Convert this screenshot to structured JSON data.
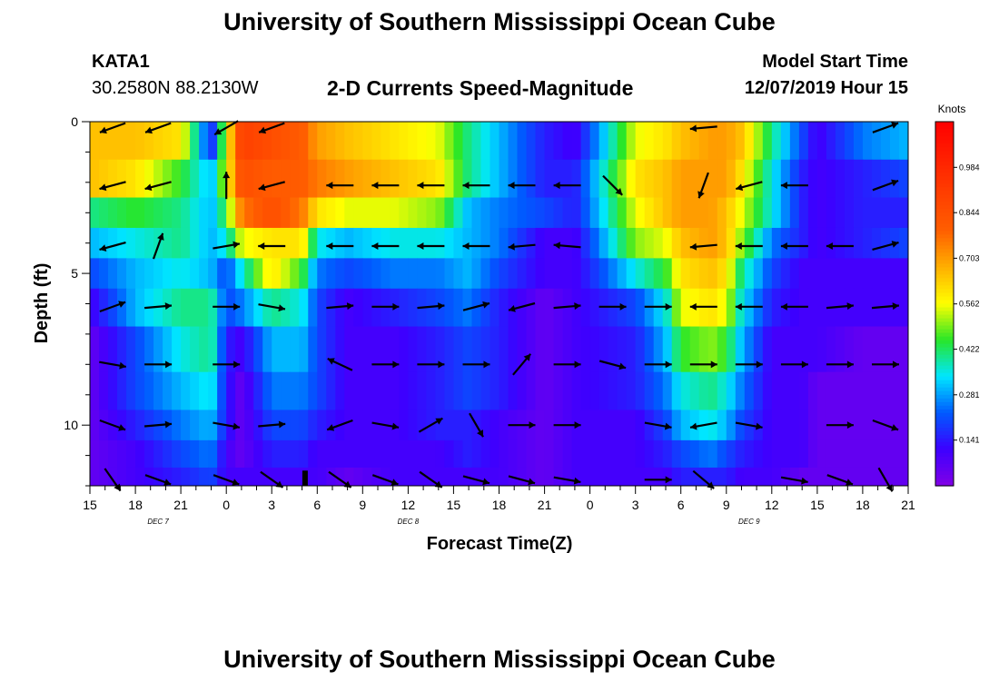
{
  "header": {
    "title": "University of Southern Mississippi Ocean Cube",
    "station": "KATA1",
    "coordinates": "30.2580N 88.2130W",
    "subtitle": "2-D Currents Speed-Magnitude",
    "model_start_label": "Model Start Time",
    "model_start_value": "12/07/2019 Hour 15"
  },
  "footer": {
    "title": "University of Southern Mississippi Ocean Cube"
  },
  "chart_data": {
    "type": "heatmap",
    "title": "2-D Currents Speed-Magnitude",
    "xlabel": "Forecast Time(Z)",
    "ylabel": "Depth (ft)",
    "x_hours": [
      0,
      54
    ],
    "x_tick_labels": [
      "15",
      "18",
      "21",
      "0",
      "3",
      "6",
      "9",
      "12",
      "15",
      "18",
      "21",
      "0",
      "3",
      "6",
      "9",
      "12",
      "15",
      "18",
      "21"
    ],
    "day_labels": [
      {
        "text": "DEC  7",
        "hour": 4.5
      },
      {
        "text": "DEC  8",
        "hour": 21
      },
      {
        "text": "DEC  9",
        "hour": 43.5
      }
    ],
    "ylim": [
      0,
      12
    ],
    "y_tick_labels": [
      "0",
      "5",
      "10"
    ],
    "y_major_ticks": [
      0,
      5,
      10
    ],
    "colorbar": {
      "label": "Knots",
      "min": 0,
      "max": 1.125,
      "ticks": [
        "0.984",
        "0.844",
        "0.703",
        "0.562",
        "0.422",
        "0.281",
        "0.141"
      ],
      "tick_values": [
        0.984,
        0.844,
        0.703,
        0.562,
        0.422,
        0.281,
        0.141
      ]
    },
    "depth_levels": [
      0.5,
      2,
      3,
      4,
      5,
      6,
      7.5,
      9,
      10,
      11,
      11.8
    ],
    "time_keypoints_hours": [
      0,
      3,
      6,
      8,
      9,
      10,
      12,
      14,
      15,
      17,
      20,
      23,
      25,
      27,
      30,
      32,
      36,
      38,
      39,
      41,
      42,
      43,
      45,
      47,
      48,
      51,
      54
    ],
    "speed_rows": [
      [
        0.65,
        0.65,
        0.6,
        0.15,
        0.55,
        0.9,
        0.85,
        0.8,
        0.7,
        0.65,
        0.6,
        0.55,
        0.4,
        0.3,
        0.15,
        0.1,
        0.55,
        0.6,
        0.65,
        0.7,
        0.7,
        0.65,
        0.4,
        0.2,
        0.1,
        0.25,
        0.3
      ],
      [
        0.65,
        0.6,
        0.45,
        0.3,
        0.55,
        0.85,
        0.8,
        0.8,
        0.75,
        0.7,
        0.65,
        0.6,
        0.4,
        0.3,
        0.15,
        0.15,
        0.6,
        0.65,
        0.7,
        0.7,
        0.7,
        0.6,
        0.35,
        0.15,
        0.1,
        0.15,
        0.2
      ],
      [
        0.4,
        0.45,
        0.4,
        0.3,
        0.45,
        0.75,
        0.85,
        0.75,
        0.6,
        0.55,
        0.55,
        0.5,
        0.3,
        0.25,
        0.2,
        0.15,
        0.55,
        0.65,
        0.7,
        0.7,
        0.65,
        0.55,
        0.35,
        0.15,
        0.1,
        0.15,
        0.15
      ],
      [
        0.3,
        0.35,
        0.4,
        0.3,
        0.35,
        0.55,
        0.6,
        0.6,
        0.35,
        0.3,
        0.35,
        0.35,
        0.3,
        0.25,
        0.1,
        0.1,
        0.5,
        0.55,
        0.65,
        0.7,
        0.65,
        0.5,
        0.25,
        0.15,
        0.1,
        0.15,
        0.2
      ],
      [
        0.2,
        0.3,
        0.35,
        0.3,
        0.2,
        0.35,
        0.6,
        0.45,
        0.25,
        0.2,
        0.25,
        0.25,
        0.3,
        0.2,
        0.1,
        0.1,
        0.35,
        0.45,
        0.6,
        0.65,
        0.6,
        0.4,
        0.2,
        0.1,
        0.1,
        0.1,
        0.1
      ],
      [
        0.1,
        0.3,
        0.4,
        0.4,
        0.2,
        0.25,
        0.4,
        0.35,
        0.2,
        0.1,
        0.15,
        0.2,
        0.25,
        0.15,
        0.05,
        0.1,
        0.2,
        0.35,
        0.55,
        0.6,
        0.55,
        0.35,
        0.15,
        0.1,
        0.1,
        0.1,
        0.1
      ],
      [
        0.05,
        0.2,
        0.35,
        0.4,
        0.15,
        0.1,
        0.3,
        0.3,
        0.2,
        0.1,
        0.1,
        0.15,
        0.2,
        0.15,
        0.05,
        0.1,
        0.15,
        0.3,
        0.45,
        0.5,
        0.45,
        0.3,
        0.1,
        0.1,
        0.1,
        0.05,
        0.05
      ],
      [
        0.05,
        0.2,
        0.3,
        0.35,
        0.15,
        0.05,
        0.25,
        0.25,
        0.2,
        0.1,
        0.1,
        0.15,
        0.2,
        0.15,
        0.05,
        0.1,
        0.15,
        0.25,
        0.35,
        0.4,
        0.35,
        0.25,
        0.1,
        0.1,
        0.05,
        0.05,
        0.05
      ],
      [
        0.05,
        0.15,
        0.25,
        0.3,
        0.15,
        0.05,
        0.2,
        0.2,
        0.15,
        0.1,
        0.1,
        0.15,
        0.15,
        0.1,
        0.05,
        0.1,
        0.1,
        0.2,
        0.3,
        0.35,
        0.3,
        0.2,
        0.1,
        0.1,
        0.05,
        0.05,
        0.05
      ],
      [
        0.05,
        0.1,
        0.2,
        0.25,
        0.1,
        0.05,
        0.15,
        0.15,
        0.1,
        0.1,
        0.1,
        0.1,
        0.15,
        0.1,
        0.05,
        0.1,
        0.1,
        0.15,
        0.2,
        0.25,
        0.2,
        0.15,
        0.1,
        0.1,
        0.05,
        0.05,
        0.05
      ],
      [
        0.05,
        0.1,
        0.15,
        0.2,
        0.1,
        0.1,
        0.1,
        0.1,
        0.1,
        0.05,
        0.1,
        0.1,
        0.1,
        0.1,
        0.05,
        0.1,
        0.1,
        0.1,
        0.15,
        0.15,
        0.15,
        0.1,
        0.1,
        0.05,
        0.05,
        0.05,
        0.05
      ]
    ],
    "vector_hours": [
      1.5,
      4.5,
      9,
      12,
      16.5,
      19.5,
      22.5,
      25.5,
      28.5,
      31.5,
      34.5,
      37.5,
      40.5,
      43.5,
      46.5,
      49.5,
      52.5
    ],
    "vector_rows": [
      {
        "depth": 0.2,
        "angles": [
          200,
          200,
          210,
          200,
          null,
          null,
          null,
          null,
          null,
          null,
          null,
          null,
          185,
          null,
          null,
          null,
          20
        ]
      },
      {
        "depth": 2.1,
        "angles": [
          195,
          195,
          90,
          195,
          180,
          180,
          180,
          180,
          180,
          180,
          315,
          null,
          250,
          195,
          180,
          null,
          20
        ]
      },
      {
        "depth": 4.1,
        "angles": [
          195,
          70,
          10,
          180,
          180,
          180,
          180,
          180,
          185,
          175,
          null,
          null,
          185,
          180,
          180,
          180,
          15
        ]
      },
      {
        "depth": 6.1,
        "angles": [
          20,
          5,
          0,
          350,
          5,
          0,
          5,
          15,
          195,
          5,
          0,
          0,
          180,
          180,
          180,
          5,
          5
        ]
      },
      {
        "depth": 8.0,
        "angles": [
          350,
          0,
          0,
          null,
          155,
          0,
          0,
          0,
          50,
          0,
          345,
          0,
          0,
          0,
          0,
          0,
          0
        ]
      },
      {
        "depth": 10.0,
        "angles": [
          340,
          5,
          350,
          5,
          200,
          350,
          30,
          300,
          0,
          0,
          null,
          350,
          190,
          350,
          null,
          0,
          340
        ]
      },
      {
        "depth": 11.8,
        "angles": [
          305,
          340,
          340,
          325,
          325,
          340,
          325,
          345,
          345,
          350,
          null,
          0,
          320,
          null,
          350,
          340,
          300
        ]
      }
    ],
    "marker_hour": 14.2
  }
}
